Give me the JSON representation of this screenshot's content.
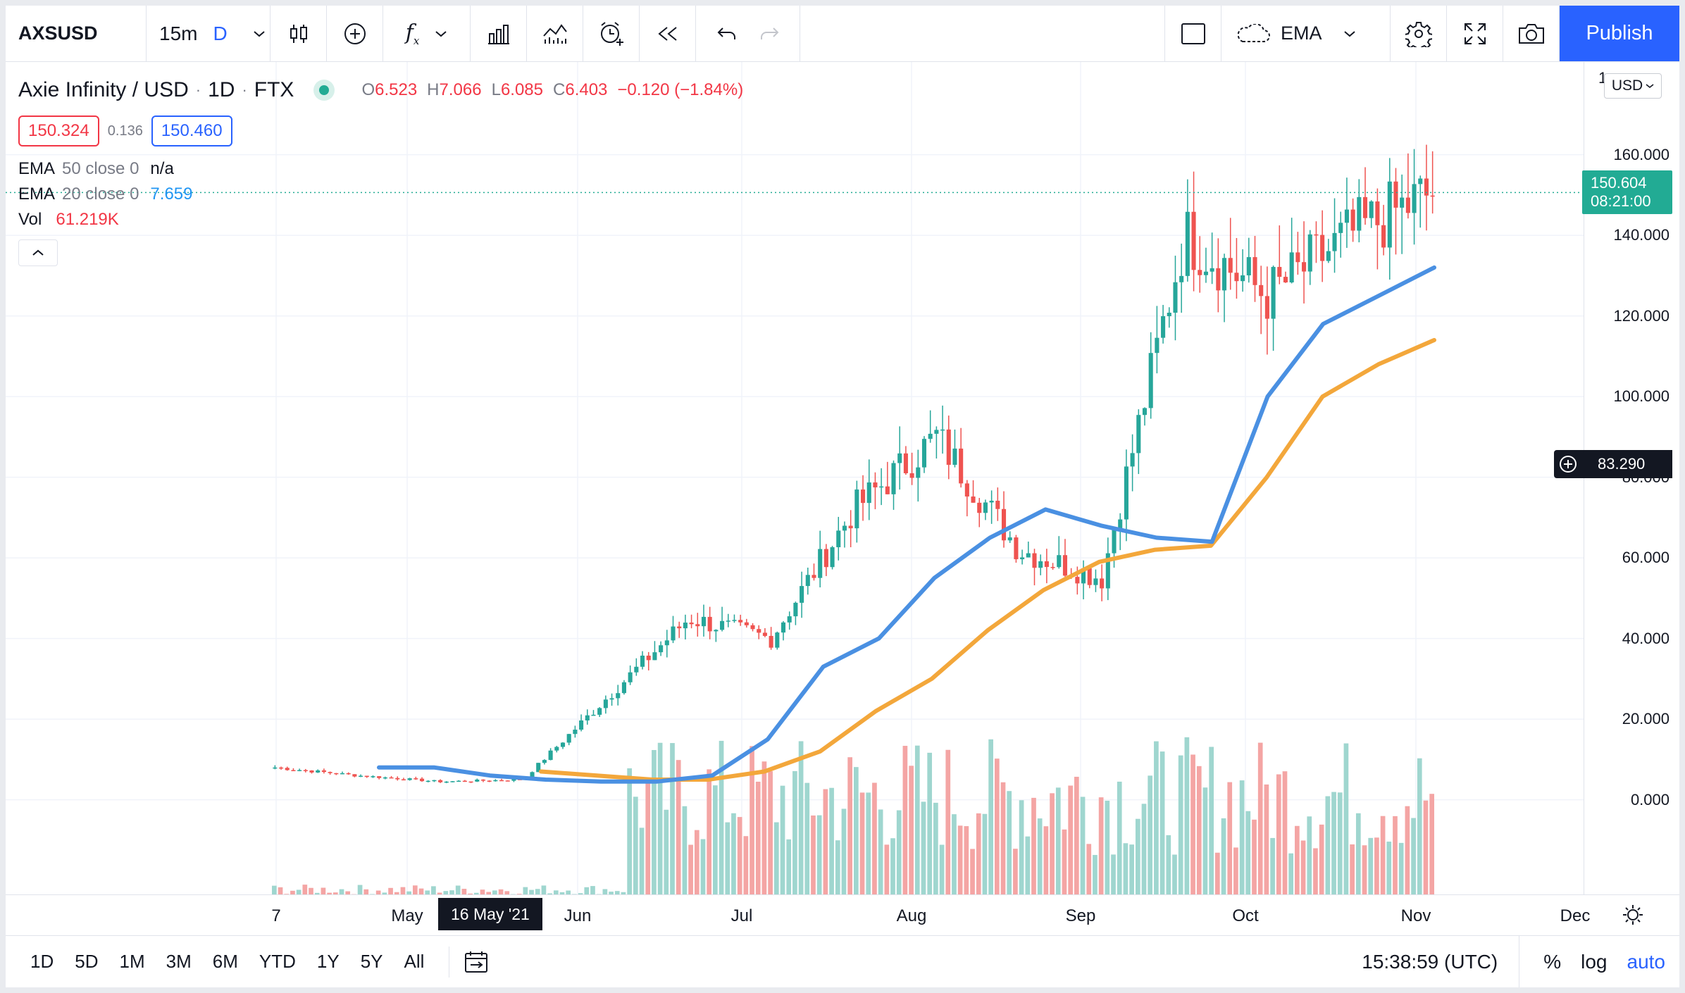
{
  "toolbar": {
    "symbol": "AXSUSD",
    "interval": "15m",
    "interval_alt": "D",
    "indicator_label": "EMA",
    "publish_label": "Publish"
  },
  "legend": {
    "title": "Axie Infinity / USD",
    "resolution": "1D",
    "exchange": "FTX",
    "ohlc": {
      "o_key": "O",
      "o_val": "6.523",
      "h_key": "H",
      "h_val": "7.066",
      "l_key": "L",
      "l_val": "6.085",
      "c_key": "C",
      "c_val": "6.403",
      "change": "−0.120 (−1.84%)"
    },
    "bid": "150.324",
    "spread": "0.136",
    "ask": "150.460",
    "indicators": [
      {
        "name": "EMA",
        "params": "50 close 0",
        "value": "n/a"
      },
      {
        "name": "EMA",
        "params": "20 close 0",
        "value": "7.659"
      },
      {
        "name": "Vol",
        "params": "",
        "value": "61.219K"
      }
    ]
  },
  "price_scale": {
    "currency": "USD",
    "top_fragment": "1",
    "ticks": [
      "160.000",
      "140.000",
      "120.000",
      "100.000",
      "80.000",
      "60.000",
      "40.000",
      "20.000",
      "0.000"
    ],
    "last_price": "150.604",
    "countdown": "08:21:00",
    "crosshair_price": "83.290"
  },
  "time_scale": {
    "labels": [
      "7",
      "May",
      "Jun",
      "Jul",
      "Aug",
      "Sep",
      "Oct",
      "Nov",
      "Dec"
    ],
    "hover_label": "16 May '21"
  },
  "bottom_bar": {
    "ranges": [
      "1D",
      "5D",
      "1M",
      "3M",
      "6M",
      "YTD",
      "1Y",
      "5Y",
      "All"
    ],
    "clock": "15:38:59 (UTC)",
    "percent": "%",
    "log": "log",
    "auto": "auto"
  },
  "colors": {
    "up": "#26a69a",
    "down": "#ef5350",
    "ema20": "#4a90e2",
    "ema50": "#f3a73b",
    "accent": "#2962ff"
  },
  "chart_data": {
    "type": "candlestick",
    "price_range": [
      -13,
      176
    ],
    "candles_summary": [
      {
        "period": "late Apr",
        "price": 8
      },
      {
        "period": "May",
        "price": 6
      },
      {
        "period": "Jun",
        "price": 4.5
      },
      {
        "period": "early Jul",
        "price": 5
      },
      {
        "period": "mid Jul",
        "price": 25
      },
      {
        "period": "late Jul",
        "price": 45
      },
      {
        "period": "early Aug",
        "price": 40
      },
      {
        "period": "mid Aug",
        "price": 72
      },
      {
        "period": "early Sep",
        "price": 90
      },
      {
        "period": "mid Sep",
        "price": 62
      },
      {
        "period": "late Sep",
        "price": 55
      },
      {
        "period": "early Oct",
        "price": 140
      },
      {
        "period": "mid Oct",
        "price": 125
      },
      {
        "period": "late Oct",
        "price": 140
      },
      {
        "period": "Nov",
        "price": 150.6
      }
    ],
    "ema20": [
      8,
      8,
      6,
      5,
      4.5,
      4.5,
      6,
      15,
      33,
      40,
      55,
      65,
      72,
      68,
      65,
      64,
      100,
      118,
      125,
      132
    ],
    "ema50": [
      7,
      6,
      5,
      5,
      7,
      12,
      22,
      30,
      42,
      52,
      59,
      62,
      63,
      80,
      100,
      108,
      114
    ]
  }
}
